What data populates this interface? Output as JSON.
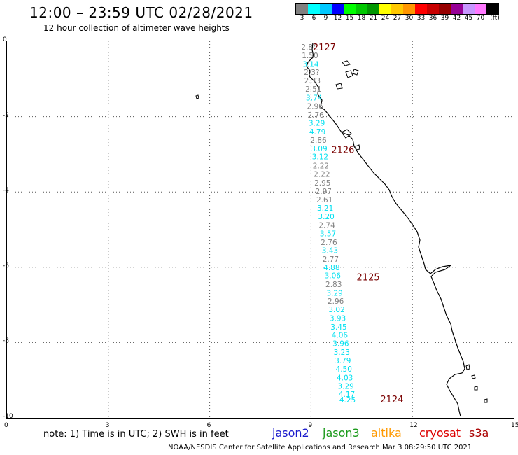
{
  "header": {
    "title": "12:00 – 23:59 UTC 02/28/2021",
    "subtitle": "12 hour collection of altimeter wave heights"
  },
  "legend": {
    "unit_label": "(ft)",
    "bins": [
      {
        "label": "3",
        "color": "#808080"
      },
      {
        "label": "6",
        "color": "#00ffff"
      },
      {
        "label": "9",
        "color": "#00c8ff"
      },
      {
        "label": "12",
        "color": "#0000ff"
      },
      {
        "label": "15",
        "color": "#00ff00"
      },
      {
        "label": "18",
        "color": "#00c800"
      },
      {
        "label": "21",
        "color": "#009600"
      },
      {
        "label": "24",
        "color": "#ffff00"
      },
      {
        "label": "27",
        "color": "#ffc800"
      },
      {
        "label": "30",
        "color": "#ff9600"
      },
      {
        "label": "33",
        "color": "#ff0000"
      },
      {
        "label": "36",
        "color": "#c80000"
      },
      {
        "label": "39",
        "color": "#960000"
      },
      {
        "label": "42",
        "color": "#960096"
      },
      {
        "label": "45",
        "color": "#c896ff"
      },
      {
        "label": "70",
        "color": "#ff78ff"
      },
      {
        "label": "",
        "color": "#000000"
      }
    ]
  },
  "axes": {
    "x_ticks": [
      "0",
      "3",
      "6",
      "9",
      "12",
      "15"
    ],
    "y_ticks": [
      "0",
      "-2",
      "-4",
      "-6",
      "-8",
      "-10"
    ],
    "xlim": [
      0,
      15
    ],
    "ylim": [
      -10,
      0
    ],
    "grid": true
  },
  "observations": [
    {
      "x": 8.95,
      "y": -0.15,
      "value": "2.84",
      "sat": "grey"
    },
    {
      "x": 8.97,
      "y": -0.37,
      "value": "1.50",
      "sat": "grey"
    },
    {
      "x": 8.99,
      "y": -0.6,
      "value": "3.14",
      "sat": "cyan"
    },
    {
      "x": 9.02,
      "y": -0.82,
      "value": "2.3?",
      "sat": "grey"
    },
    {
      "x": 9.04,
      "y": -1.04,
      "value": "2.33",
      "sat": "grey"
    },
    {
      "x": 9.07,
      "y": -1.26,
      "value": "2.51",
      "sat": "grey"
    },
    {
      "x": 9.09,
      "y": -1.5,
      "value": "3.74",
      "sat": "cyan"
    },
    {
      "x": 9.12,
      "y": -1.72,
      "value": "2.96",
      "sat": "grey"
    },
    {
      "x": 9.14,
      "y": -1.95,
      "value": "2.76",
      "sat": "grey"
    },
    {
      "x": 9.17,
      "y": -2.17,
      "value": "3.29",
      "sat": "cyan"
    },
    {
      "x": 9.19,
      "y": -2.4,
      "value": "4.79",
      "sat": "cyan"
    },
    {
      "x": 9.22,
      "y": -2.62,
      "value": "2.86",
      "sat": "grey"
    },
    {
      "x": 9.24,
      "y": -2.84,
      "value": "3.09",
      "sat": "cyan"
    },
    {
      "x": 9.27,
      "y": -3.06,
      "value": "3.12",
      "sat": "cyan"
    },
    {
      "x": 9.29,
      "y": -3.3,
      "value": "2.22",
      "sat": "grey"
    },
    {
      "x": 9.32,
      "y": -3.52,
      "value": "2.22",
      "sat": "grey"
    },
    {
      "x": 9.34,
      "y": -3.75,
      "value": "2.95",
      "sat": "grey"
    },
    {
      "x": 9.37,
      "y": -3.98,
      "value": "2.97",
      "sat": "grey"
    },
    {
      "x": 9.4,
      "y": -4.2,
      "value": "2.61",
      "sat": "grey"
    },
    {
      "x": 9.42,
      "y": -4.42,
      "value": "3.21",
      "sat": "cyan"
    },
    {
      "x": 9.45,
      "y": -4.65,
      "value": "3.20",
      "sat": "cyan"
    },
    {
      "x": 9.47,
      "y": -4.88,
      "value": "2.74",
      "sat": "grey"
    },
    {
      "x": 9.5,
      "y": -5.1,
      "value": "3.57",
      "sat": "cyan"
    },
    {
      "x": 9.53,
      "y": -5.33,
      "value": "2.76",
      "sat": "grey"
    },
    {
      "x": 9.56,
      "y": -5.55,
      "value": "3.43",
      "sat": "cyan"
    },
    {
      "x": 9.58,
      "y": -5.78,
      "value": "2.77",
      "sat": "grey"
    },
    {
      "x": 9.61,
      "y": -6.0,
      "value": "4.88",
      "sat": "cyan"
    },
    {
      "x": 9.64,
      "y": -6.22,
      "value": "3.06",
      "sat": "cyan"
    },
    {
      "x": 9.67,
      "y": -6.45,
      "value": "2.83",
      "sat": "grey"
    },
    {
      "x": 9.7,
      "y": -6.68,
      "value": "3.29",
      "sat": "cyan"
    },
    {
      "x": 9.73,
      "y": -6.9,
      "value": "2.96",
      "sat": "grey"
    },
    {
      "x": 9.76,
      "y": -7.12,
      "value": "3.02",
      "sat": "cyan"
    },
    {
      "x": 9.79,
      "y": -7.35,
      "value": "3.93",
      "sat": "cyan"
    },
    {
      "x": 9.82,
      "y": -7.58,
      "value": "3.45",
      "sat": "cyan"
    },
    {
      "x": 9.85,
      "y": -7.8,
      "value": "4.06",
      "sat": "cyan"
    },
    {
      "x": 9.88,
      "y": -8.02,
      "value": "3.96",
      "sat": "cyan"
    },
    {
      "x": 9.91,
      "y": -8.25,
      "value": "3.23",
      "sat": "cyan"
    },
    {
      "x": 9.94,
      "y": -8.48,
      "value": "3.79",
      "sat": "cyan"
    },
    {
      "x": 9.97,
      "y": -8.7,
      "value": "4.50",
      "sat": "cyan"
    },
    {
      "x": 10.0,
      "y": -8.93,
      "value": "4.03",
      "sat": "cyan"
    },
    {
      "x": 10.03,
      "y": -9.15,
      "value": "3.29",
      "sat": "cyan"
    },
    {
      "x": 10.06,
      "y": -9.37,
      "value": "4.17",
      "sat": "cyan"
    },
    {
      "x": 10.08,
      "y": -9.52,
      "value": "4.25",
      "sat": "cyan"
    }
  ],
  "pass_times": [
    {
      "x": 9.05,
      "y": -0.15,
      "label": "2127"
    },
    {
      "x": 9.6,
      "y": -2.87,
      "label": "2126"
    },
    {
      "x": 10.35,
      "y": -6.25,
      "label": "2125"
    },
    {
      "x": 11.05,
      "y": -9.5,
      "label": "2124"
    }
  ],
  "colors": {
    "grey": "#808080",
    "cyan": "#00e0f0",
    "pass": "#7a0000"
  },
  "footer": {
    "note": "note: 1) Time is in UTC; 2) SWH is in feet",
    "credit": "NOAA/NESDIS Center for Satellite Applications and Research   Mar  3 08:29:50 UTC 2021",
    "satellites": [
      {
        "label": "jason2",
        "color": "#1a1acc"
      },
      {
        "label": "jason3",
        "color": "#1a9a1a"
      },
      {
        "label": "altika",
        "color": "#ff9900"
      },
      {
        "label": "cryosat",
        "color": "#dd0000"
      },
      {
        "label": "s3a",
        "color": "#aa0000"
      }
    ]
  }
}
